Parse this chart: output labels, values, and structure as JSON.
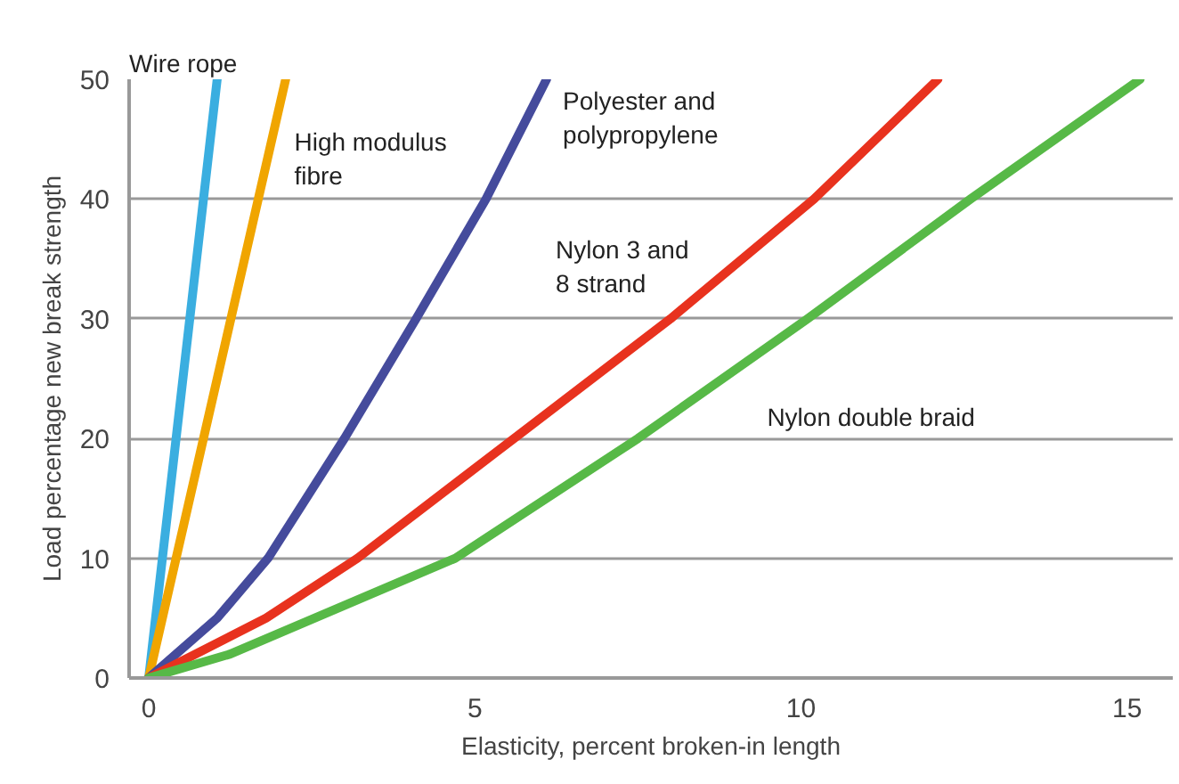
{
  "chart_data": {
    "type": "line",
    "xlabel": "Elasticity, percent broken-in length",
    "ylabel": "Load percentage new break strength",
    "xlim": [
      -0.3,
      15.7
    ],
    "ylim": [
      0,
      50
    ],
    "xticks": [
      0,
      5,
      10,
      15
    ],
    "yticks": [
      0,
      10,
      20,
      30,
      40,
      50
    ],
    "grid": "y",
    "marker": "none",
    "line_style": "solid",
    "series": [
      {
        "name": "Wire rope",
        "color": "#3aaee0",
        "x": [
          0,
          1.05
        ],
        "values": [
          0,
          50
        ]
      },
      {
        "name": "High modulus\nfibre",
        "color": "#f0a500",
        "x": [
          0,
          2.1
        ],
        "values": [
          0,
          50
        ]
      },
      {
        "name": "Polyester and\npolypropylene",
        "color": "#454b9c",
        "x": [
          0,
          1.05,
          1.83,
          3.0,
          4.1,
          5.17,
          6.1
        ],
        "values": [
          0,
          5,
          10,
          20,
          30,
          40,
          50
        ]
      },
      {
        "name": "Nylon 3 and\n8 strand",
        "color": "#e8321e",
        "x": [
          0,
          1.8,
          3.2,
          5.6,
          8.0,
          10.2,
          12.1
        ],
        "values": [
          0,
          5,
          10,
          20,
          30,
          40,
          50
        ]
      },
      {
        "name": "Nylon double braid",
        "color": "#57b947",
        "x": [
          0,
          1.25,
          4.7,
          7.5,
          10.1,
          12.6,
          15.2
        ],
        "values": [
          0,
          2,
          10,
          20,
          30,
          40,
          50
        ]
      }
    ]
  }
}
